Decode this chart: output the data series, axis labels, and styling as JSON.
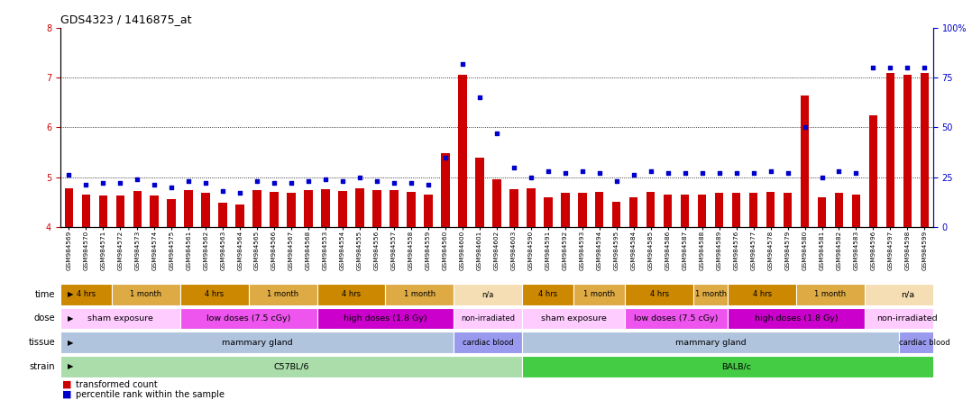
{
  "title": "GDS4323 / 1416875_at",
  "ylim_left": [
    4,
    8
  ],
  "ylim_right": [
    0,
    100
  ],
  "yticks_left": [
    4,
    5,
    6,
    7,
    8
  ],
  "yticks_right": [
    0,
    25,
    50,
    75,
    100
  ],
  "samples": [
    "GSM984569",
    "GSM984570",
    "GSM984571",
    "GSM984572",
    "GSM984573",
    "GSM984574",
    "GSM984575",
    "GSM984561",
    "GSM984562",
    "GSM984563",
    "GSM984564",
    "GSM984565",
    "GSM984566",
    "GSM984567",
    "GSM984568",
    "GSM984553",
    "GSM984554",
    "GSM984555",
    "GSM984556",
    "GSM984557",
    "GSM984558",
    "GSM984559",
    "GSM984560",
    "GSM984600",
    "GSM984601",
    "GSM984602",
    "GSM984603",
    "GSM984590",
    "GSM984591",
    "GSM984592",
    "GSM984593",
    "GSM984594",
    "GSM984595",
    "GSM984584",
    "GSM984585",
    "GSM984586",
    "GSM984587",
    "GSM984588",
    "GSM984589",
    "GSM984576",
    "GSM984577",
    "GSM984578",
    "GSM984579",
    "GSM984580",
    "GSM984581",
    "GSM984582",
    "GSM984583",
    "GSM984596",
    "GSM984597",
    "GSM984598",
    "GSM984599"
  ],
  "bar_values": [
    4.78,
    4.65,
    4.63,
    4.63,
    4.72,
    4.63,
    4.56,
    4.73,
    4.68,
    4.48,
    4.44,
    4.73,
    4.7,
    4.68,
    4.73,
    4.75,
    4.72,
    4.78,
    4.73,
    4.73,
    4.7,
    4.65,
    5.48,
    7.05,
    5.4,
    4.95,
    4.75,
    4.78,
    4.6,
    4.68,
    4.68,
    4.7,
    4.5,
    4.6,
    4.7,
    4.65,
    4.65,
    4.65,
    4.68,
    4.68,
    4.68,
    4.7,
    4.68,
    6.65,
    4.6,
    4.68,
    4.65,
    6.25,
    7.1,
    7.05,
    7.1
  ],
  "scatter_values": [
    26,
    21,
    22,
    22,
    24,
    21,
    20,
    23,
    22,
    18,
    17,
    23,
    22,
    22,
    23,
    24,
    23,
    25,
    23,
    22,
    22,
    21,
    35,
    82,
    65,
    47,
    30,
    25,
    28,
    27,
    28,
    27,
    23,
    26,
    28,
    27,
    27,
    27,
    27,
    27,
    27,
    28,
    27,
    50,
    25,
    28,
    27,
    80,
    80,
    80,
    80
  ],
  "bar_color": "#cc0000",
  "scatter_color": "#0000cc",
  "background_color": "#ffffff",
  "strain_rows": [
    {
      "label": "C57BL/6",
      "start": 0,
      "end": 27,
      "color": "#aaddaa"
    },
    {
      "label": "BALB/c",
      "start": 27,
      "end": 52,
      "color": "#44cc44"
    }
  ],
  "tissue_rows": [
    {
      "label": "mammary gland",
      "start": 0,
      "end": 23,
      "color": "#b0c4de"
    },
    {
      "label": "cardiac blood",
      "start": 23,
      "end": 27,
      "color": "#9999ee"
    },
    {
      "label": "mammary gland",
      "start": 27,
      "end": 49,
      "color": "#b0c4de"
    },
    {
      "label": "cardiac blood",
      "start": 49,
      "end": 52,
      "color": "#9999ee"
    }
  ],
  "dose_rows": [
    {
      "label": "sham exposure",
      "start": 0,
      "end": 7,
      "color": "#ffccff"
    },
    {
      "label": "low doses (7.5 cGy)",
      "start": 7,
      "end": 15,
      "color": "#ee55ee"
    },
    {
      "label": "high doses (1.8 Gy)",
      "start": 15,
      "end": 23,
      "color": "#cc00cc"
    },
    {
      "label": "non-irradiated",
      "start": 23,
      "end": 27,
      "color": "#ffccff"
    },
    {
      "label": "sham exposure",
      "start": 27,
      "end": 33,
      "color": "#ffccff"
    },
    {
      "label": "low doses (7.5 cGy)",
      "start": 33,
      "end": 39,
      "color": "#ee55ee"
    },
    {
      "label": "high doses (1.8 Gy)",
      "start": 39,
      "end": 47,
      "color": "#cc00cc"
    },
    {
      "label": "non-irradiated",
      "start": 47,
      "end": 52,
      "color": "#ffccff"
    }
  ],
  "time_rows": [
    {
      "label": "4 hrs",
      "start": 0,
      "end": 3,
      "color": "#cc8800"
    },
    {
      "label": "1 month",
      "start": 3,
      "end": 7,
      "color": "#ddaa44"
    },
    {
      "label": "4 hrs",
      "start": 7,
      "end": 11,
      "color": "#cc8800"
    },
    {
      "label": "1 month",
      "start": 11,
      "end": 15,
      "color": "#ddaa44"
    },
    {
      "label": "4 hrs",
      "start": 15,
      "end": 19,
      "color": "#cc8800"
    },
    {
      "label": "1 month",
      "start": 19,
      "end": 23,
      "color": "#ddaa44"
    },
    {
      "label": "n/a",
      "start": 23,
      "end": 27,
      "color": "#f5deb3"
    },
    {
      "label": "4 hrs",
      "start": 27,
      "end": 30,
      "color": "#cc8800"
    },
    {
      "label": "1 month",
      "start": 30,
      "end": 33,
      "color": "#ddaa44"
    },
    {
      "label": "4 hrs",
      "start": 33,
      "end": 37,
      "color": "#cc8800"
    },
    {
      "label": "1 month",
      "start": 37,
      "end": 39,
      "color": "#ddaa44"
    },
    {
      "label": "4 hrs",
      "start": 39,
      "end": 43,
      "color": "#cc8800"
    },
    {
      "label": "1 month",
      "start": 43,
      "end": 47,
      "color": "#ddaa44"
    },
    {
      "label": "n/a",
      "start": 47,
      "end": 52,
      "color": "#f5deb3"
    }
  ],
  "row_labels": [
    "strain",
    "tissue",
    "dose",
    "time"
  ],
  "figsize": [
    10.78,
    4.44
  ],
  "dpi": 100
}
